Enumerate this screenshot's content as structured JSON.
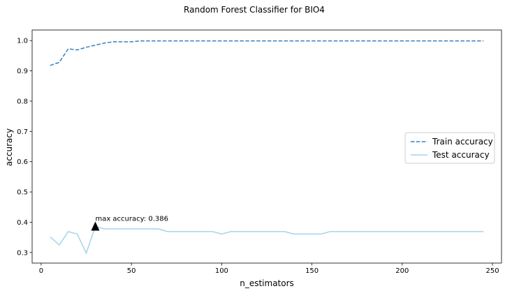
{
  "chart_data": {
    "type": "line",
    "title": "Random Forest Classifier for BIO4",
    "xlabel": "n_estimators",
    "ylabel": "accuracy",
    "xlim": [
      -5,
      255
    ],
    "ylim": [
      0.265,
      1.035
    ],
    "xticks": [
      0,
      50,
      100,
      150,
      200,
      250
    ],
    "yticks": [
      0.3,
      0.4,
      0.5,
      0.6,
      0.7,
      0.8,
      0.9,
      1.0
    ],
    "ytick_labels": [
      "0.3",
      "0.4",
      "0.5",
      "0.6",
      "0.7",
      "0.8",
      "0.9",
      "1.0"
    ],
    "grid": false,
    "legend_position": "center-right",
    "x": [
      5,
      10,
      15,
      20,
      25,
      30,
      35,
      40,
      45,
      50,
      55,
      60,
      65,
      70,
      75,
      80,
      85,
      90,
      95,
      100,
      105,
      110,
      115,
      120,
      125,
      130,
      135,
      140,
      145,
      150,
      155,
      160,
      165,
      170,
      175,
      180,
      185,
      190,
      195,
      200,
      205,
      210,
      215,
      220,
      225,
      230,
      235,
      240,
      245
    ],
    "series": [
      {
        "name": "Train accuracy",
        "style": "dashed",
        "color": "#3a7fb8",
        "values": [
          0.918,
          0.928,
          0.973,
          0.969,
          0.978,
          0.985,
          0.992,
          0.996,
          0.996,
          0.996,
          0.999,
          0.999,
          0.999,
          0.999,
          0.999,
          0.999,
          0.999,
          0.999,
          0.999,
          0.999,
          0.999,
          0.999,
          0.999,
          0.999,
          0.999,
          0.999,
          0.999,
          0.999,
          0.999,
          0.999,
          0.999,
          0.999,
          0.999,
          0.999,
          0.999,
          0.999,
          0.999,
          0.999,
          0.999,
          0.999,
          0.999,
          0.999,
          0.999,
          0.999,
          0.999,
          0.999,
          0.999,
          0.999,
          0.999
        ]
      },
      {
        "name": "Test accuracy",
        "style": "solid",
        "color": "#a6d4ea",
        "values": [
          0.352,
          0.325,
          0.369,
          0.361,
          0.298,
          0.386,
          0.378,
          0.378,
          0.378,
          0.378,
          0.378,
          0.378,
          0.378,
          0.369,
          0.369,
          0.369,
          0.369,
          0.369,
          0.369,
          0.361,
          0.369,
          0.369,
          0.369,
          0.369,
          0.369,
          0.369,
          0.369,
          0.361,
          0.361,
          0.361,
          0.361,
          0.369,
          0.369,
          0.369,
          0.369,
          0.369,
          0.369,
          0.369,
          0.369,
          0.369,
          0.369,
          0.369,
          0.369,
          0.369,
          0.369,
          0.369,
          0.369,
          0.369,
          0.369
        ]
      }
    ],
    "annotation": {
      "text": "max accuracy: 0.386",
      "marker": "triangle",
      "x": 30,
      "y": 0.386
    }
  }
}
